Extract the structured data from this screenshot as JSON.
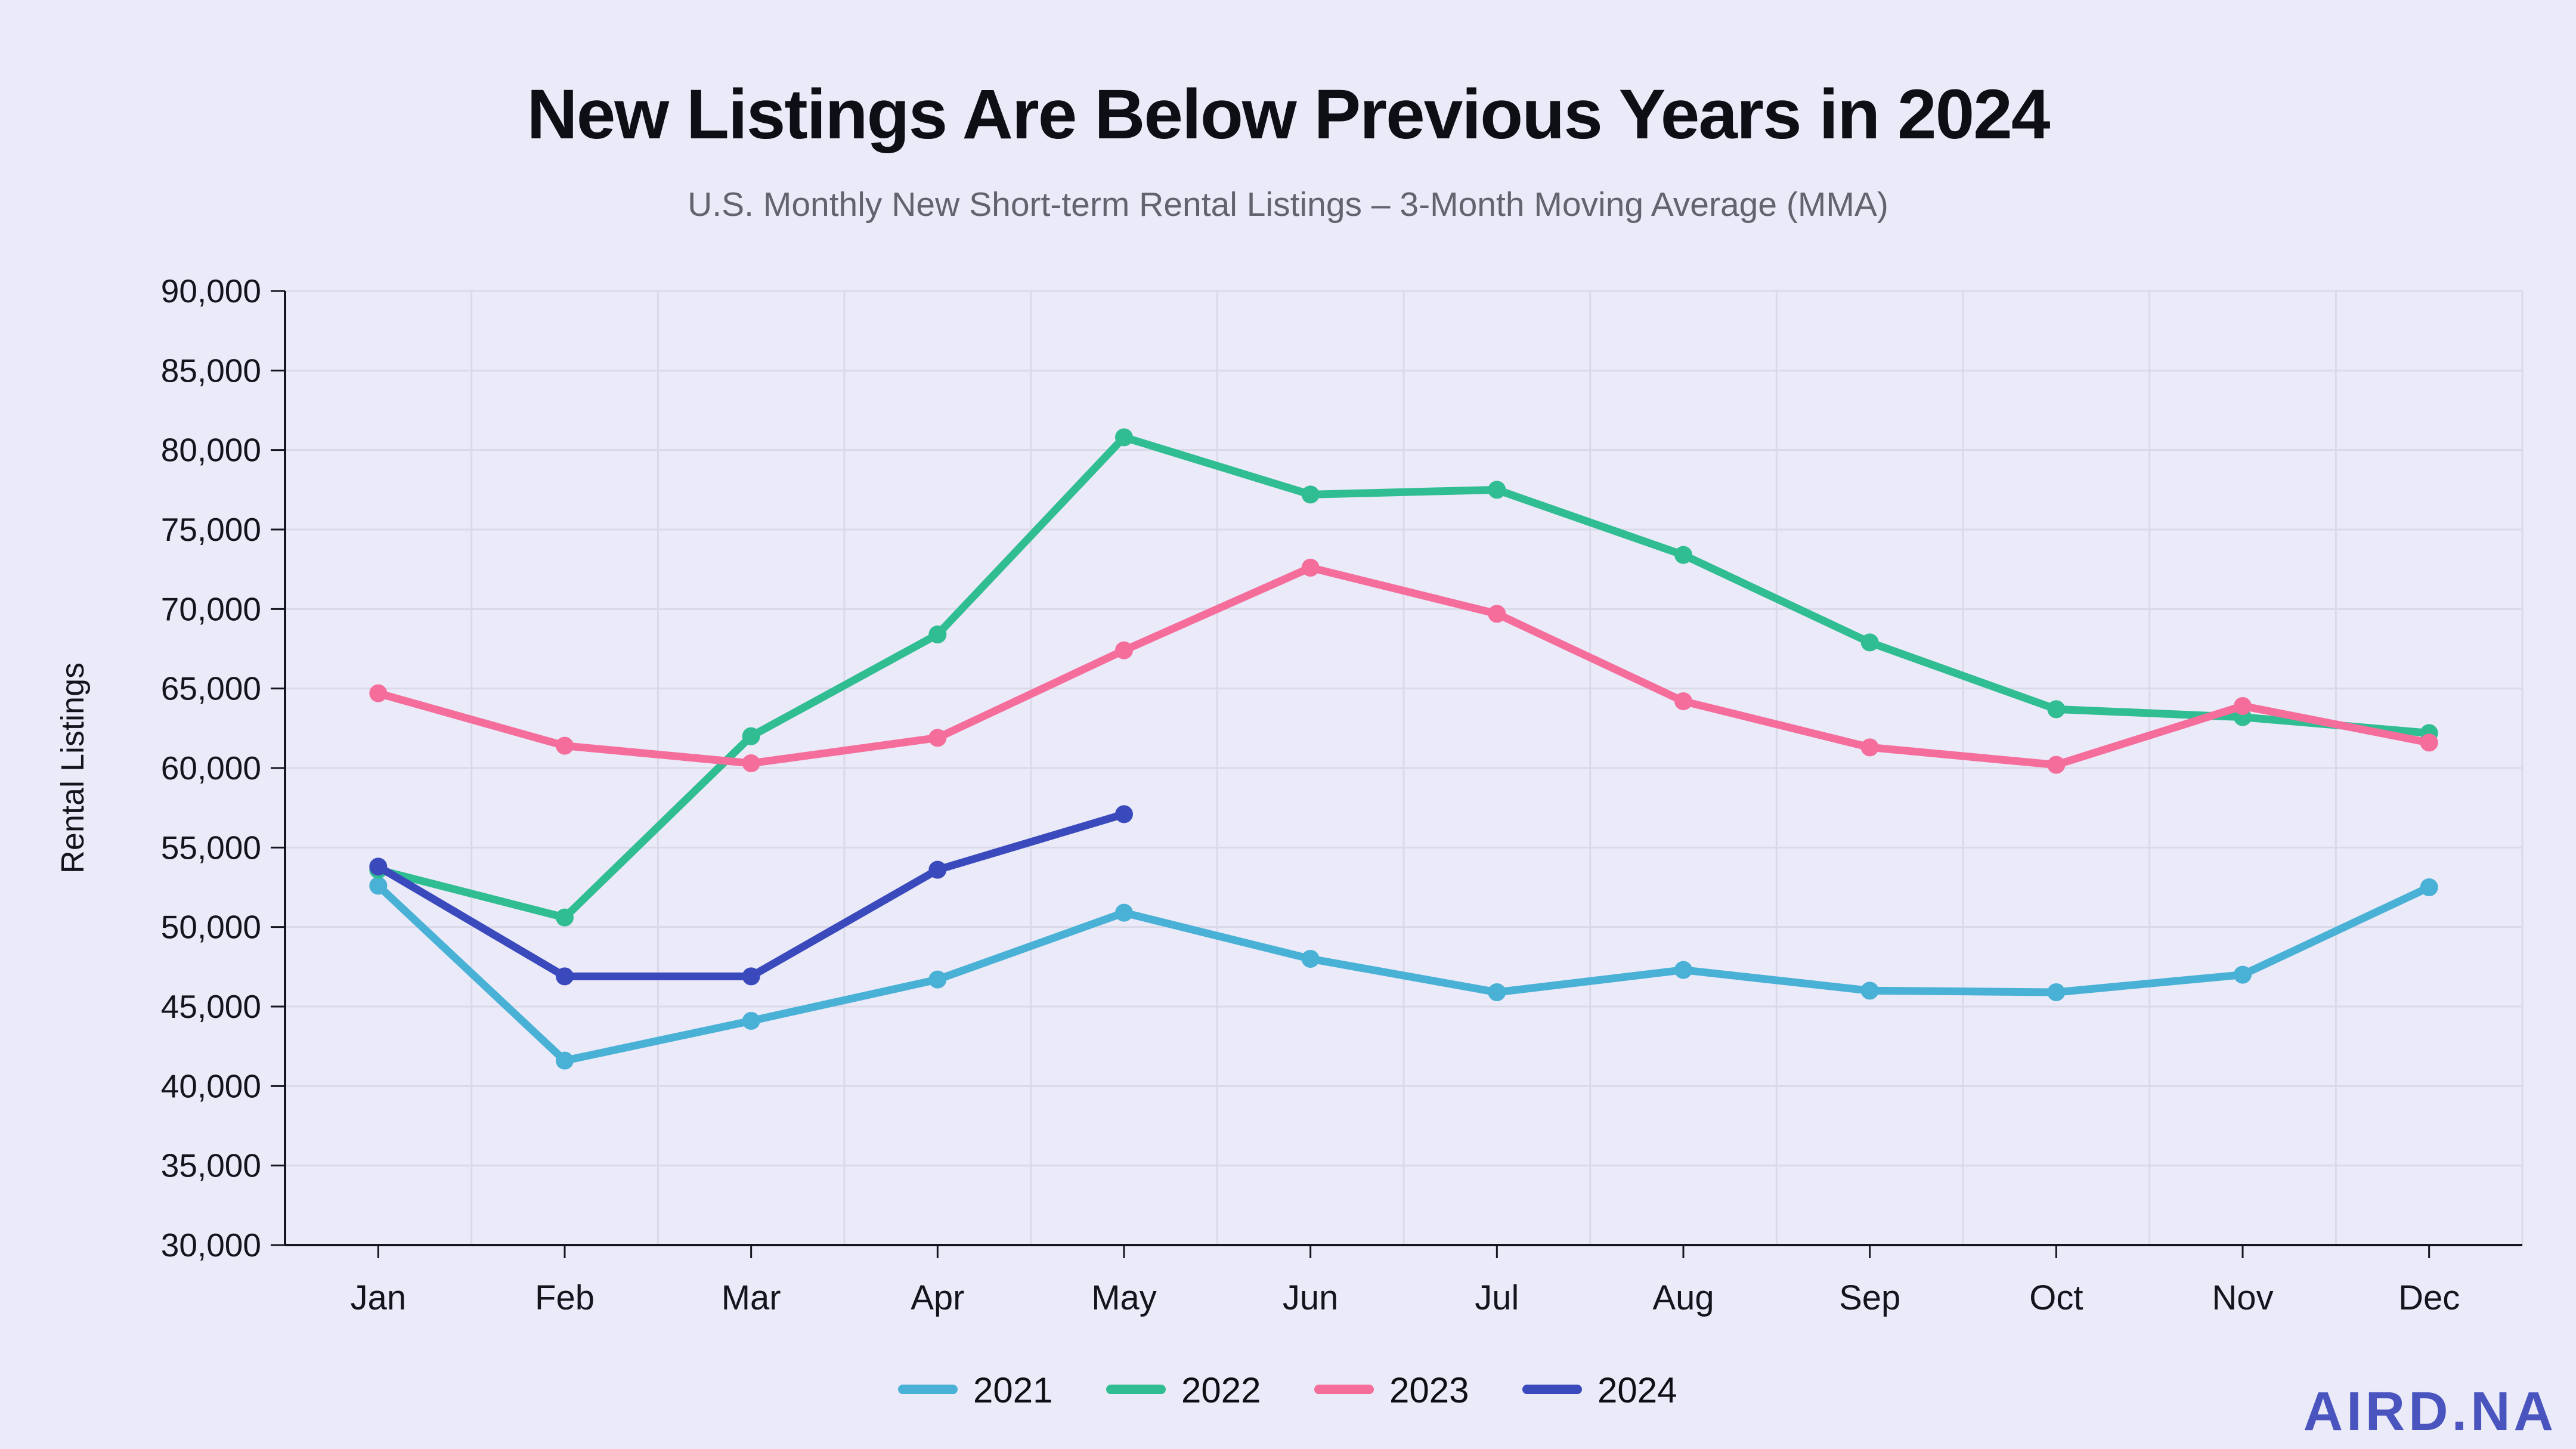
{
  "title": "New Listings Are Below Previous Years in 2024",
  "subtitle": "U.S. Monthly New Short-term Rental Listings – 3-Month Moving Average (MMA)",
  "logo_text": "AIRD.NA",
  "colors": {
    "background": "#EAEAF8",
    "gridline": "#D9D9E8",
    "axis": "#15151F",
    "title_text": "#0E0E15",
    "subtitle_text": "#63636F",
    "logo": "#4A54BE"
  },
  "chart_data": {
    "type": "line",
    "categories": [
      "Jan",
      "Feb",
      "Mar",
      "Apr",
      "May",
      "Jun",
      "Jul",
      "Aug",
      "Sep",
      "Oct",
      "Nov",
      "Dec"
    ],
    "series": [
      {
        "name": "2021",
        "color": "#49B1D6",
        "values": [
          52600,
          41600,
          44100,
          46700,
          50900,
          48000,
          45900,
          47300,
          46000,
          45900,
          47000,
          52500
        ]
      },
      {
        "name": "2022",
        "color": "#30BD92",
        "values": [
          53600,
          50600,
          62000,
          68400,
          80800,
          77200,
          77500,
          73400,
          67900,
          63700,
          63200,
          62200
        ]
      },
      {
        "name": "2023",
        "color": "#F56E9B",
        "values": [
          64700,
          61400,
          60300,
          61900,
          67400,
          72600,
          69700,
          64200,
          61300,
          60200,
          63900,
          61600
        ]
      },
      {
        "name": "2024",
        "color": "#3A4ABD",
        "values": [
          53800,
          46900,
          46900,
          53600,
          57100
        ]
      }
    ],
    "title": "New Listings Are Below Previous Years in 2024",
    "xlabel": "",
    "ylabel": "Rental Listings",
    "ylim": [
      30000,
      90000
    ],
    "ytick_step": 5000,
    "ytick_labels": [
      "30,000",
      "35,000",
      "40,000",
      "45,000",
      "50,000",
      "55,000",
      "60,000",
      "65,000",
      "70,000",
      "75,000",
      "80,000",
      "85,000",
      "90,000"
    ],
    "grid": true,
    "legend_position": "bottom",
    "legend_entries": [
      "2021",
      "2022",
      "2023",
      "2024"
    ]
  }
}
